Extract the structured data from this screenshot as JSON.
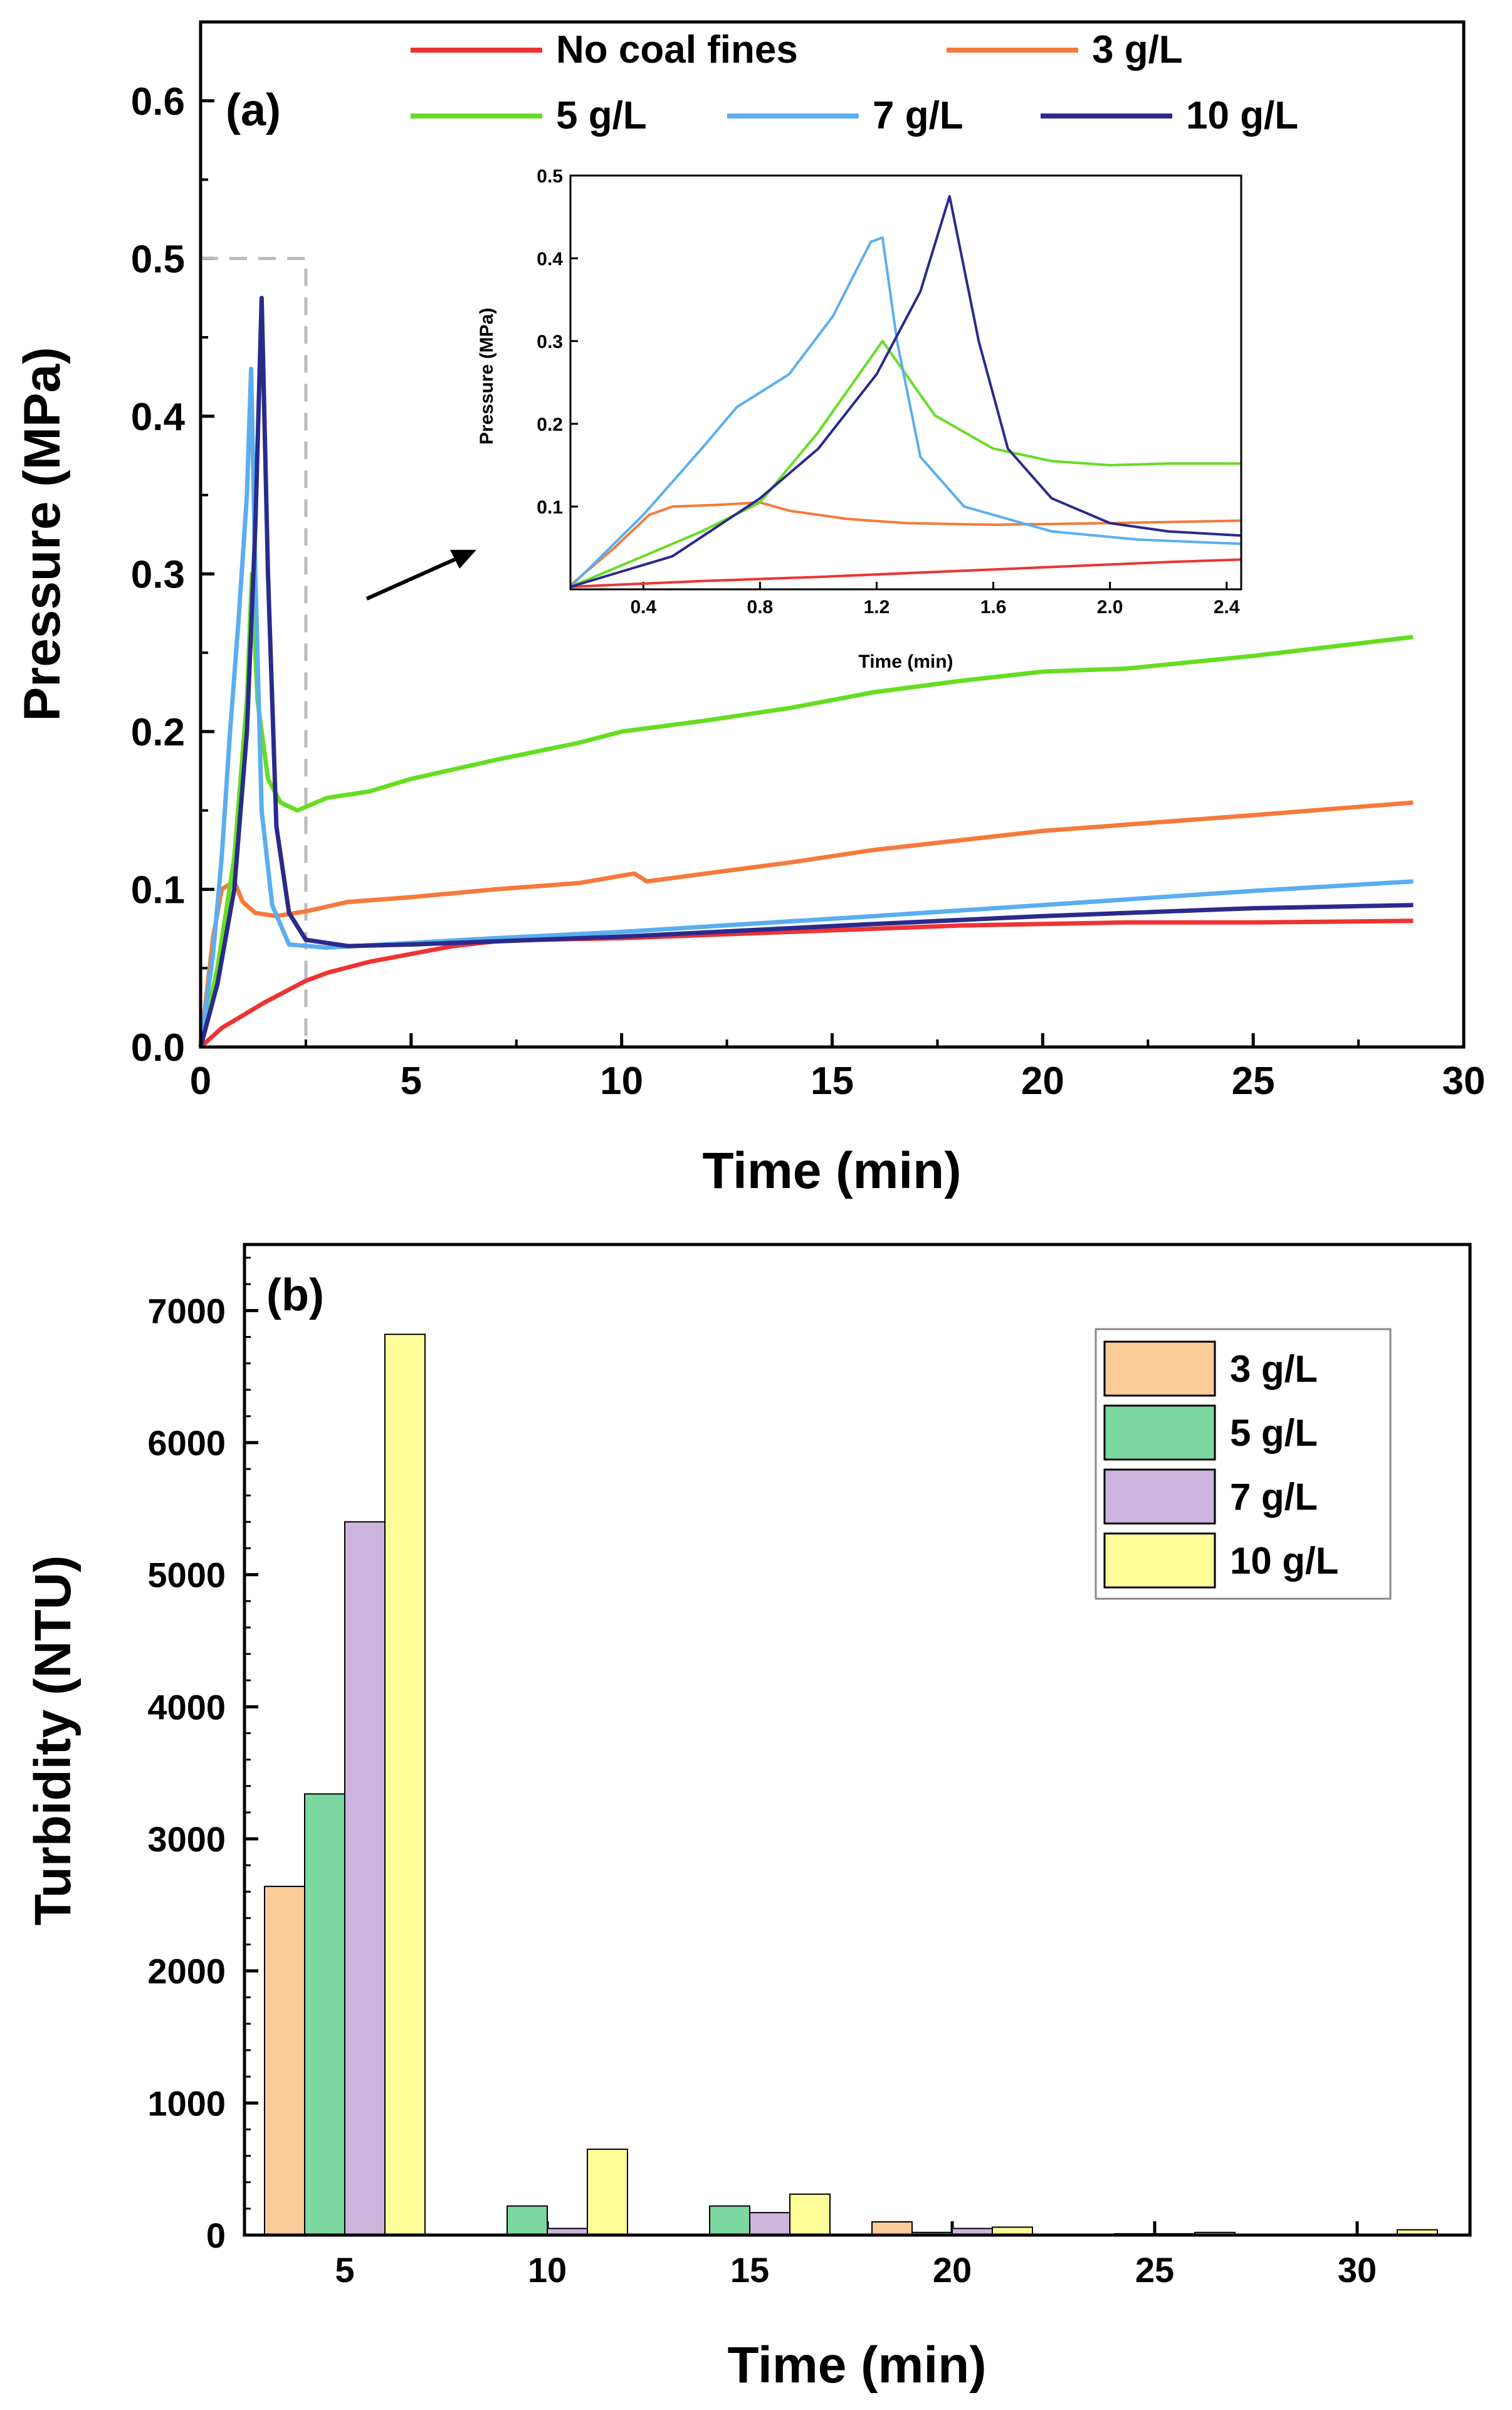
{
  "figure": {
    "panels": [
      {
        "id": "a",
        "label": "(a)",
        "xlabel": "Time (min)",
        "ylabel": "Pressure (MPa)",
        "xlim": [
          0,
          30
        ],
        "ylim": [
          0,
          0.65
        ],
        "x_ticks": [
          "0",
          "5",
          "10",
          "15",
          "20",
          "25",
          "30"
        ],
        "y_ticks": [
          "0.0",
          "0.1",
          "0.2",
          "0.3",
          "0.4",
          "0.5",
          "0.6"
        ]
      },
      {
        "id": "inset",
        "xlabel": "Time (min)",
        "ylabel": "Pressure (MPa)",
        "xlim": [
          0.15,
          2.45
        ],
        "ylim": [
          0,
          0.5
        ],
        "x_ticks": [
          "0.4",
          "0.8",
          "1.2",
          "1.6",
          "2.0",
          "2.4"
        ],
        "y_ticks": [
          "0.1",
          "0.2",
          "0.3",
          "0.4",
          "0.5"
        ]
      },
      {
        "id": "b",
        "label": "(b)",
        "xlabel": "Time (min)",
        "ylabel": "Turbidity (NTU)",
        "ylim": [
          0,
          7500
        ],
        "x_ticks": [
          "5",
          "10",
          "15",
          "20",
          "25",
          "30"
        ],
        "y_ticks": [
          "0",
          "1000",
          "2000",
          "3000",
          "4000",
          "5000",
          "6000",
          "7000"
        ]
      }
    ]
  },
  "chart_data": [
    {
      "type": "line",
      "panel": "a",
      "title": "(a)",
      "xlabel": "Time (min)",
      "ylabel": "Pressure (MPa)",
      "xlim": [
        0,
        30
      ],
      "ylim": [
        0,
        0.65
      ],
      "legend_position": "top",
      "annotations": [
        "dashed zoom box from 0 to 2.5 min, 0 to 0.5 MPa",
        "arrow pointing to inset"
      ],
      "series": [
        {
          "name": "No coal fines",
          "color": "#ee3333",
          "points": [
            [
              0,
              0
            ],
            [
              0.5,
              0.012
            ],
            [
              1,
              0.02
            ],
            [
              1.5,
              0.028
            ],
            [
              2,
              0.035
            ],
            [
              2.5,
              0.042
            ],
            [
              3,
              0.047
            ],
            [
              4,
              0.054
            ],
            [
              5,
              0.059
            ],
            [
              6,
              0.064
            ],
            [
              7,
              0.067
            ],
            [
              8,
              0.068
            ],
            [
              10,
              0.069
            ],
            [
              12,
              0.071
            ],
            [
              15,
              0.074
            ],
            [
              18,
              0.077
            ],
            [
              20,
              0.078
            ],
            [
              22,
              0.079
            ],
            [
              25,
              0.079
            ],
            [
              28.8,
              0.08
            ]
          ]
        },
        {
          "name": "3 g/L",
          "color": "#f47a3c",
          "points": [
            [
              0,
              0
            ],
            [
              0.3,
              0.07
            ],
            [
              0.5,
              0.1
            ],
            [
              0.8,
              0.105
            ],
            [
              1,
              0.092
            ],
            [
              1.3,
              0.085
            ],
            [
              1.8,
              0.083
            ],
            [
              2.5,
              0.086
            ],
            [
              3.5,
              0.092
            ],
            [
              5,
              0.095
            ],
            [
              7,
              0.1
            ],
            [
              9,
              0.104
            ],
            [
              10.3,
              0.11
            ],
            [
              10.6,
              0.105
            ],
            [
              12,
              0.11
            ],
            [
              14,
              0.117
            ],
            [
              16,
              0.125
            ],
            [
              18,
              0.131
            ],
            [
              20,
              0.137
            ],
            [
              22,
              0.141
            ],
            [
              25,
              0.147
            ],
            [
              28.8,
              0.155
            ]
          ]
        },
        {
          "name": "5 g/L",
          "color": "#66dd22",
          "points": [
            [
              0,
              0
            ],
            [
              0.4,
              0.05
            ],
            [
              0.8,
              0.12
            ],
            [
              1.1,
              0.22
            ],
            [
              1.22,
              0.3
            ],
            [
              1.35,
              0.22
            ],
            [
              1.6,
              0.17
            ],
            [
              1.9,
              0.155
            ],
            [
              2.3,
              0.15
            ],
            [
              3,
              0.158
            ],
            [
              4,
              0.162
            ],
            [
              5,
              0.17
            ],
            [
              7,
              0.182
            ],
            [
              9,
              0.193
            ],
            [
              10,
              0.2
            ],
            [
              12,
              0.207
            ],
            [
              14,
              0.215
            ],
            [
              16,
              0.225
            ],
            [
              18,
              0.232
            ],
            [
              20,
              0.238
            ],
            [
              22,
              0.24
            ],
            [
              25,
              0.248
            ],
            [
              28.8,
              0.26
            ]
          ]
        },
        {
          "name": "7 g/L",
          "color": "#5aaef0",
          "points": [
            [
              0,
              0
            ],
            [
              0.3,
              0.06
            ],
            [
              0.5,
              0.12
            ],
            [
              0.7,
              0.2
            ],
            [
              0.9,
              0.27
            ],
            [
              1.1,
              0.35
            ],
            [
              1.2,
              0.43
            ],
            [
              1.3,
              0.3
            ],
            [
              1.45,
              0.15
            ],
            [
              1.7,
              0.09
            ],
            [
              2.1,
              0.065
            ],
            [
              3,
              0.063
            ],
            [
              5,
              0.066
            ],
            [
              7,
              0.069
            ],
            [
              10,
              0.073
            ],
            [
              13,
              0.078
            ],
            [
              16,
              0.083
            ],
            [
              20,
              0.09
            ],
            [
              25,
              0.099
            ],
            [
              28.8,
              0.105
            ]
          ]
        },
        {
          "name": "10 g/L",
          "color": "#2a2a8c",
          "points": [
            [
              0,
              0
            ],
            [
              0.4,
              0.04
            ],
            [
              0.8,
              0.1
            ],
            [
              1.1,
              0.2
            ],
            [
              1.3,
              0.33
            ],
            [
              1.45,
              0.475
            ],
            [
              1.6,
              0.3
            ],
            [
              1.8,
              0.14
            ],
            [
              2.1,
              0.085
            ],
            [
              2.5,
              0.068
            ],
            [
              3.5,
              0.064
            ],
            [
              5,
              0.065
            ],
            [
              7,
              0.067
            ],
            [
              10,
              0.07
            ],
            [
              13,
              0.074
            ],
            [
              16,
              0.078
            ],
            [
              20,
              0.083
            ],
            [
              25,
              0.088
            ],
            [
              28.8,
              0.09
            ]
          ]
        }
      ]
    },
    {
      "type": "line",
      "panel": "inset",
      "xlabel": "Time (min)",
      "ylabel": "Pressure (MPa)",
      "xlim": [
        0.15,
        2.45
      ],
      "ylim": [
        0,
        0.5
      ],
      "series": [
        {
          "name": "No coal fines",
          "color": "#ee3333",
          "points": [
            [
              0.15,
              0.003
            ],
            [
              0.6,
              0.01
            ],
            [
              1,
              0.015
            ],
            [
              1.4,
              0.021
            ],
            [
              1.8,
              0.027
            ],
            [
              2.2,
              0.033
            ],
            [
              2.45,
              0.036
            ]
          ]
        },
        {
          "name": "3 g/L",
          "color": "#f47a3c",
          "points": [
            [
              0.15,
              0.005
            ],
            [
              0.3,
              0.05
            ],
            [
              0.42,
              0.09
            ],
            [
              0.5,
              0.1
            ],
            [
              0.65,
              0.102
            ],
            [
              0.8,
              0.105
            ],
            [
              0.9,
              0.095
            ],
            [
              1.1,
              0.085
            ],
            [
              1.3,
              0.08
            ],
            [
              1.6,
              0.078
            ],
            [
              2,
              0.08
            ],
            [
              2.45,
              0.083
            ]
          ]
        },
        {
          "name": "5 g/L",
          "color": "#66dd22",
          "points": [
            [
              0.15,
              0.003
            ],
            [
              0.4,
              0.04
            ],
            [
              0.6,
              0.07
            ],
            [
              0.8,
              0.105
            ],
            [
              1,
              0.19
            ],
            [
              1.22,
              0.3
            ],
            [
              1.4,
              0.21
            ],
            [
              1.6,
              0.17
            ],
            [
              1.8,
              0.155
            ],
            [
              2,
              0.15
            ],
            [
              2.2,
              0.152
            ],
            [
              2.45,
              0.152
            ]
          ]
        },
        {
          "name": "7 g/L",
          "color": "#5aaef0",
          "points": [
            [
              0.15,
              0.003
            ],
            [
              0.4,
              0.09
            ],
            [
              0.6,
              0.17
            ],
            [
              0.72,
              0.22
            ],
            [
              0.9,
              0.26
            ],
            [
              1.05,
              0.33
            ],
            [
              1.18,
              0.42
            ],
            [
              1.22,
              0.425
            ],
            [
              1.27,
              0.3
            ],
            [
              1.35,
              0.16
            ],
            [
              1.5,
              0.1
            ],
            [
              1.8,
              0.07
            ],
            [
              2.1,
              0.06
            ],
            [
              2.45,
              0.055
            ]
          ]
        },
        {
          "name": "10 g/L",
          "color": "#2a2a8c",
          "points": [
            [
              0.15,
              0.003
            ],
            [
              0.5,
              0.04
            ],
            [
              0.8,
              0.11
            ],
            [
              1,
              0.17
            ],
            [
              1.2,
              0.26
            ],
            [
              1.35,
              0.36
            ],
            [
              1.45,
              0.475
            ],
            [
              1.55,
              0.3
            ],
            [
              1.65,
              0.17
            ],
            [
              1.8,
              0.11
            ],
            [
              2,
              0.08
            ],
            [
              2.2,
              0.07
            ],
            [
              2.45,
              0.065
            ]
          ]
        }
      ]
    },
    {
      "type": "bar",
      "panel": "b",
      "title": "(b)",
      "xlabel": "Time (min)",
      "ylabel": "Turbidity (NTU)",
      "categories": [
        "5",
        "10",
        "15",
        "20",
        "25",
        "30"
      ],
      "ylim": [
        0,
        7500
      ],
      "legend_position": "top-right",
      "series": [
        {
          "name": "3 g/L",
          "color": "#fccc99",
          "values": [
            2640,
            0,
            0,
            100,
            0,
            0
          ]
        },
        {
          "name": "5 g/L",
          "color": "#7ad8a0",
          "values": [
            3340,
            220,
            220,
            20,
            10,
            0
          ]
        },
        {
          "name": "7 g/L",
          "color": "#ccb4dd",
          "values": [
            5400,
            50,
            170,
            50,
            10,
            0
          ]
        },
        {
          "name": "10 g/L",
          "color": "#fcfc99",
          "values": [
            6820,
            650,
            310,
            60,
            20,
            40
          ]
        }
      ]
    }
  ]
}
